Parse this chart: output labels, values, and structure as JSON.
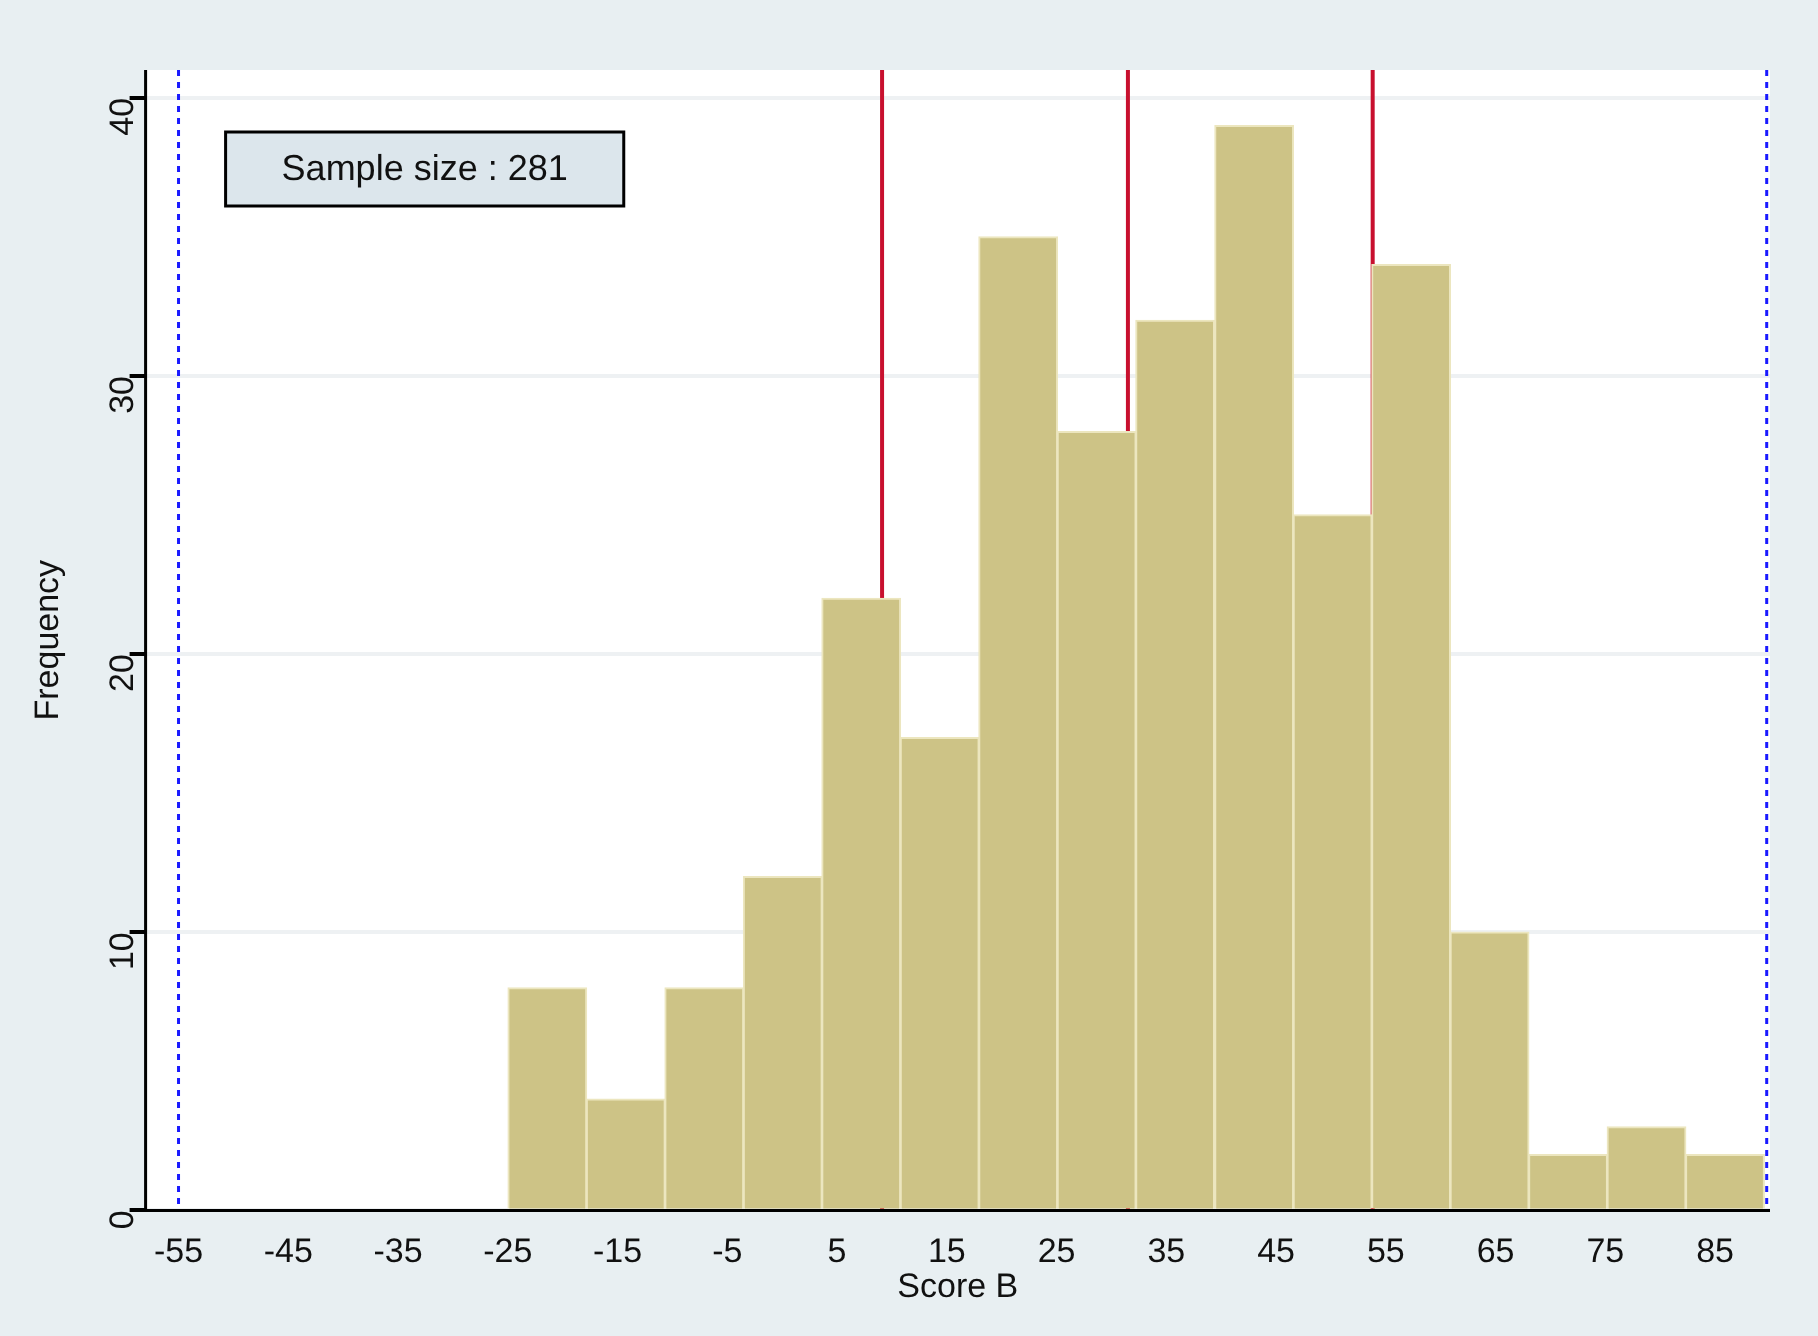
{
  "chart_data": {
    "type": "histogram",
    "xlabel": "Score B",
    "ylabel": "Frequency",
    "bins": [
      -25,
      -17.8,
      -10.7,
      -3.5,
      3.6,
      10.8,
      17.9,
      25.1,
      32.2,
      39.4,
      46.6,
      53.7,
      60.9,
      68.0,
      75.2,
      82.3,
      89.5
    ],
    "values": [
      8,
      4,
      8,
      12,
      22,
      17,
      35,
      28,
      32,
      39,
      25,
      34,
      10,
      2,
      3,
      2
    ],
    "color": "#cdc386",
    "xlim": [
      -58,
      90
    ],
    "xticks": [
      -55,
      -45,
      -35,
      -25,
      -15,
      -5,
      5,
      15,
      25,
      35,
      45,
      55,
      65,
      75,
      85
    ],
    "ylim": [
      0,
      41
    ],
    "yticks": [
      0,
      10,
      20,
      30,
      40
    ],
    "grid": "y",
    "ref_lines": [
      {
        "axis": "x",
        "value": -55,
        "color": "#1a1aff",
        "line_style": "dotted"
      },
      {
        "axis": "x",
        "value": 89.7,
        "color": "#1a1aff",
        "line_style": "dotted"
      },
      {
        "axis": "x",
        "value": 9.1,
        "color": "#c8102e",
        "line_style": "solid"
      },
      {
        "axis": "x",
        "value": 31.5,
        "color": "#c8102e",
        "line_style": "solid"
      },
      {
        "axis": "x",
        "value": 53.8,
        "color": "#c8102e",
        "line_style": "solid"
      }
    ],
    "annotations": [
      "Sample size : 281"
    ]
  }
}
